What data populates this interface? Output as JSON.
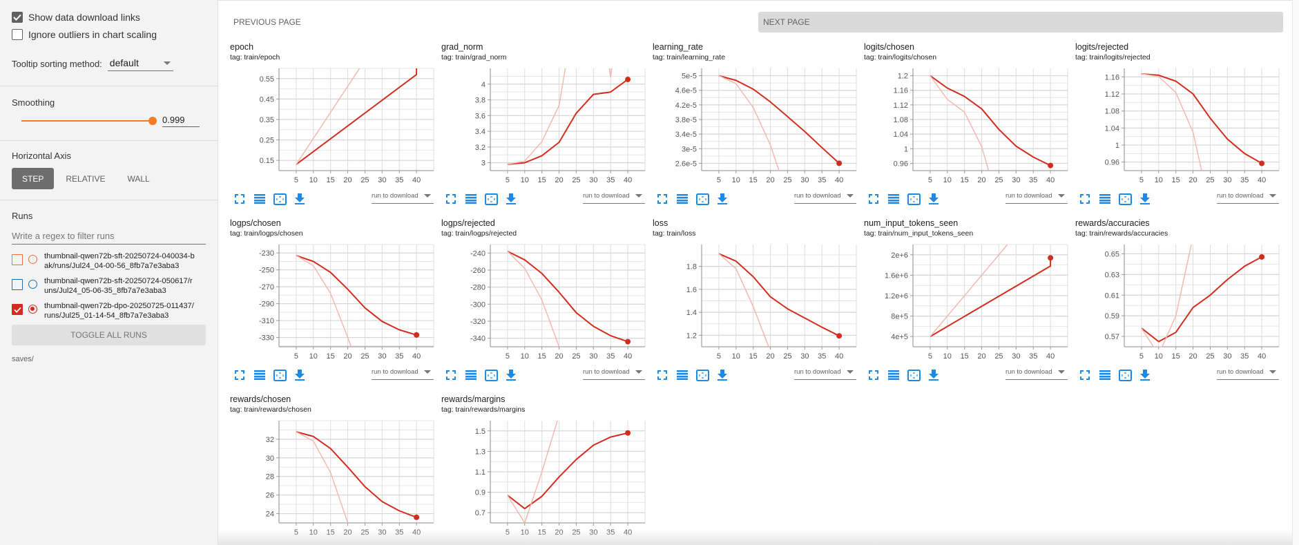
{
  "sidebar": {
    "show_download_links": {
      "label": "Show data download links",
      "checked": true
    },
    "ignore_outliers": {
      "label": "Ignore outliers in chart scaling",
      "checked": false
    },
    "tooltip_sorting": {
      "label": "Tooltip sorting method:",
      "value": "default"
    },
    "smoothing": {
      "label": "Smoothing",
      "value": "0.999"
    },
    "horizontal_axis": {
      "label": "Horizontal Axis",
      "options": [
        "STEP",
        "RELATIVE",
        "WALL"
      ],
      "selected": "STEP"
    },
    "runs": {
      "label": "Runs",
      "filter_placeholder": "Write a regex to filter runs",
      "items": [
        {
          "name": "thumbnail-qwen72b-sft-20250724-040034-bak/runs/Jul24_04-00-56_8fb7a7e3aba3",
          "color": "#f4703a",
          "checked": false
        },
        {
          "name": "thumbnail-qwen72b-sft-20250724-050617/runs/Jul24_05-06-35_8fb7a7e3aba3",
          "color": "#1f6fb4",
          "checked": false
        },
        {
          "name": "thumbnail-qwen72b-dpo-20250725-011437/runs/Jul25_01-14-54_8fb7a7e3aba3",
          "color": "#d42a1f",
          "checked": true
        }
      ],
      "toggle_all_label": "TOGGLE ALL RUNS",
      "logdir": "saves/"
    }
  },
  "main": {
    "prev_page": "PREVIOUS PAGE",
    "next_page": "NEXT PAGE",
    "download_placeholder": "run to download",
    "tag_prefix": "tag: "
  },
  "colors": {
    "line": "#d12c1e",
    "raw_line": "#f5b8b0",
    "accent_blue": "#1e88e5",
    "slider": "#f57c27"
  },
  "chart_data": [
    {
      "type": "line",
      "title": "epoch",
      "tag": "train/epoch",
      "xlabel": "Step",
      "x_ticks": [
        5,
        10,
        15,
        20,
        25,
        30,
        35,
        40
      ],
      "xlim": [
        0,
        45
      ],
      "y_ticks": [
        0.15,
        0.25,
        0.35,
        0.45,
        0.55
      ],
      "y_tick_labels": [
        "0.15",
        "0.25",
        "0.35",
        "0.45",
        "0.55"
      ],
      "ylim": [
        0.1,
        0.6
      ],
      "series": [
        {
          "name": "smoothed",
          "x": [
            5,
            40,
            40
          ],
          "y": [
            0.13,
            0.57,
            0.62
          ]
        },
        {
          "name": "raw",
          "x": [
            5,
            25
          ],
          "y": [
            0.13,
            0.64
          ]
        }
      ],
      "last_point": [
        40,
        0.62
      ]
    },
    {
      "type": "line",
      "title": "grad_norm",
      "tag": "train/grad_norm",
      "x_ticks": [
        5,
        10,
        15,
        20,
        25,
        30,
        35,
        40
      ],
      "xlim": [
        0,
        45
      ],
      "y_ticks": [
        3,
        3.2,
        3.4,
        3.6,
        3.8,
        4
      ],
      "y_tick_labels": [
        "3",
        "3.2",
        "3.4",
        "3.6",
        "3.8",
        "4"
      ],
      "ylim": [
        2.9,
        4.2
      ],
      "series": [
        {
          "name": "smoothed",
          "x": [
            5,
            10,
            15,
            20,
            25,
            30,
            35,
            40
          ],
          "y": [
            2.98,
            3.0,
            3.09,
            3.26,
            3.63,
            3.87,
            3.9,
            4.06
          ]
        },
        {
          "name": "raw",
          "x": [
            5,
            10,
            15,
            20,
            22
          ],
          "y": [
            2.98,
            3.02,
            3.27,
            3.73,
            4.25
          ]
        },
        {
          "name": "raw2",
          "x": [
            34.5,
            35,
            35.5
          ],
          "y": [
            4.25,
            4.09,
            4.25
          ]
        }
      ],
      "last_point": [
        40,
        4.06
      ]
    },
    {
      "type": "line",
      "title": "learning_rate",
      "tag": "train/learning_rate",
      "x_ticks": [
        5,
        10,
        15,
        20,
        25,
        30,
        35,
        40
      ],
      "xlim": [
        0,
        45
      ],
      "y_ticks": [
        2.6e-05,
        3e-05,
        3.4e-05,
        3.8e-05,
        4.2e-05,
        4.6e-05,
        5e-05
      ],
      "y_tick_labels": [
        "2.6e-5",
        "3e-5",
        "3.4e-5",
        "3.8e-5",
        "4.2e-5",
        "4.6e-5",
        "5e-5"
      ],
      "ylim": [
        2.4e-05,
        5.2e-05
      ],
      "series": [
        {
          "name": "smoothed",
          "x": [
            5,
            10,
            15,
            20,
            25,
            30,
            35,
            40
          ],
          "y": [
            5e-05,
            4.87e-05,
            4.63e-05,
            4.28e-05,
            3.88e-05,
            3.47e-05,
            3.03e-05,
            2.6e-05
          ]
        },
        {
          "name": "raw",
          "x": [
            5,
            10,
            15,
            20,
            22.5
          ],
          "y": [
            5e-05,
            4.78e-05,
            4.13e-05,
            3.1e-05,
            2.4e-05
          ]
        }
      ],
      "last_point": [
        40,
        2.6e-05
      ]
    },
    {
      "type": "line",
      "title": "logits/chosen",
      "tag": "train/logits/chosen",
      "x_ticks": [
        5,
        10,
        15,
        20,
        25,
        30,
        35,
        40
      ],
      "xlim": [
        0,
        45
      ],
      "y_ticks": [
        0.96,
        1,
        1.04,
        1.08,
        1.12,
        1.16,
        1.2
      ],
      "y_tick_labels": [
        "0.96",
        "1",
        "1.04",
        "1.08",
        "1.12",
        "1.16",
        "1.2"
      ],
      "ylim": [
        0.94,
        1.22
      ],
      "series": [
        {
          "name": "smoothed",
          "x": [
            5,
            10,
            15,
            20,
            25,
            30,
            35,
            40
          ],
          "y": [
            1.2,
            1.166,
            1.143,
            1.109,
            1.053,
            1.007,
            0.977,
            0.954
          ]
        },
        {
          "name": "raw",
          "x": [
            5,
            10,
            15,
            20,
            22
          ],
          "y": [
            1.2,
            1.135,
            1.1,
            1.005,
            0.94
          ]
        }
      ],
      "last_point": [
        40,
        0.954
      ]
    },
    {
      "type": "line",
      "title": "logits/rejected",
      "tag": "train/logits/rejected",
      "x_ticks": [
        5,
        10,
        15,
        20,
        25,
        30,
        35,
        40
      ],
      "xlim": [
        0,
        45
      ],
      "y_ticks": [
        0.96,
        1,
        1.04,
        1.08,
        1.12,
        1.16
      ],
      "y_tick_labels": [
        "0.96",
        "1",
        "1.04",
        "1.08",
        "1.12",
        "1.16"
      ],
      "ylim": [
        0.94,
        1.18
      ],
      "series": [
        {
          "name": "smoothed",
          "x": [
            5,
            10,
            15,
            20,
            25,
            30,
            35,
            40
          ],
          "y": [
            1.167,
            1.164,
            1.15,
            1.12,
            1.063,
            1.014,
            0.98,
            0.957
          ]
        },
        {
          "name": "raw",
          "x": [
            5,
            10,
            15,
            20,
            22.5
          ],
          "y": [
            1.167,
            1.161,
            1.123,
            1.03,
            0.94
          ]
        }
      ],
      "last_point": [
        40,
        0.957
      ]
    },
    {
      "type": "line",
      "title": "logps/chosen",
      "tag": "train/logps/chosen",
      "x_ticks": [
        5,
        10,
        15,
        20,
        25,
        30,
        35,
        40
      ],
      "xlim": [
        0,
        45
      ],
      "y_ticks": [
        -330,
        -310,
        -290,
        -270,
        -250,
        -230
      ],
      "y_tick_labels": [
        "-330",
        "-310",
        "-290",
        "-270",
        "-250",
        "-230"
      ],
      "ylim": [
        -341,
        -220
      ],
      "series": [
        {
          "name": "smoothed",
          "x": [
            5,
            10,
            15,
            20,
            25,
            30,
            35,
            40
          ],
          "y": [
            -233,
            -240,
            -253,
            -273,
            -295,
            -311,
            -321,
            -327
          ]
        },
        {
          "name": "raw",
          "x": [
            5,
            10,
            15,
            20,
            21
          ],
          "y": [
            -233,
            -245,
            -278,
            -330,
            -341
          ]
        }
      ],
      "last_point": [
        40,
        -327
      ]
    },
    {
      "type": "line",
      "title": "logps/rejected",
      "tag": "train/logps/rejected",
      "x_ticks": [
        5,
        10,
        15,
        20,
        25,
        30,
        35,
        40
      ],
      "xlim": [
        0,
        45
      ],
      "y_ticks": [
        -340,
        -320,
        -300,
        -280,
        -260,
        -240
      ],
      "y_tick_labels": [
        "-340",
        "-320",
        "-300",
        "-280",
        "-260",
        "-240"
      ],
      "ylim": [
        -350,
        -230
      ],
      "series": [
        {
          "name": "smoothed",
          "x": [
            5,
            10,
            15,
            20,
            25,
            30,
            35,
            40
          ],
          "y": [
            -238,
            -248,
            -264,
            -286,
            -310,
            -326,
            -337,
            -344
          ]
        },
        {
          "name": "raw",
          "x": [
            5,
            10,
            15,
            20
          ],
          "y": [
            -238,
            -258,
            -295,
            -350
          ]
        }
      ],
      "last_point": [
        40,
        -344
      ]
    },
    {
      "type": "line",
      "title": "loss",
      "tag": "train/loss",
      "x_ticks": [
        5,
        10,
        15,
        20,
        25,
        30,
        35,
        40
      ],
      "xlim": [
        0,
        45
      ],
      "y_ticks": [
        1.2,
        1.4,
        1.6,
        1.8
      ],
      "y_tick_labels": [
        "1.2",
        "1.4",
        "1.6",
        "1.8"
      ],
      "ylim": [
        1.1,
        1.99
      ],
      "series": [
        {
          "name": "smoothed",
          "x": [
            5,
            10,
            15,
            20,
            25,
            30,
            35,
            40
          ],
          "y": [
            1.91,
            1.845,
            1.71,
            1.535,
            1.43,
            1.35,
            1.27,
            1.195
          ]
        },
        {
          "name": "raw",
          "x": [
            5,
            10,
            15,
            19.5
          ],
          "y": [
            1.91,
            1.78,
            1.45,
            1.1
          ]
        }
      ],
      "last_point": [
        40,
        1.195
      ]
    },
    {
      "type": "line",
      "title": "num_input_tokens_seen",
      "tag": "train/num_input_tokens_seen",
      "x_ticks": [
        5,
        10,
        15,
        20,
        25,
        30,
        35,
        40
      ],
      "xlim": [
        0,
        45
      ],
      "y_ticks": [
        400000,
        800000,
        1200000,
        1600000,
        2000000
      ],
      "y_tick_labels": [
        "4e+5",
        "8e+5",
        "1.2e+6",
        "1.6e+6",
        "2e+6"
      ],
      "ylim": [
        200000,
        2200000
      ],
      "series": [
        {
          "name": "smoothed",
          "x": [
            5,
            40,
            40
          ],
          "y": [
            400000,
            1780000,
            1940000
          ]
        },
        {
          "name": "raw",
          "x": [
            5,
            27.5
          ],
          "y": [
            400000,
            2200000
          ]
        }
      ],
      "last_point": [
        40,
        1940000
      ]
    },
    {
      "type": "line",
      "title": "rewards/accuracies",
      "tag": "train/rewards/accuracies",
      "x_ticks": [
        5,
        10,
        15,
        20,
        25,
        30,
        35,
        40
      ],
      "xlim": [
        0,
        45
      ],
      "y_ticks": [
        0.57,
        0.59,
        0.61,
        0.63,
        0.65
      ],
      "y_tick_labels": [
        "0.57",
        "0.59",
        "0.61",
        "0.63",
        "0.65"
      ],
      "ylim": [
        0.56,
        0.659
      ],
      "series": [
        {
          "name": "smoothed",
          "x": [
            5,
            10,
            15,
            20,
            25,
            30,
            35,
            40
          ],
          "y": [
            0.578,
            0.565,
            0.574,
            0.598,
            0.61,
            0.625,
            0.638,
            0.647
          ]
        },
        {
          "name": "raw",
          "x": [
            5,
            8.5,
            11,
            15,
            19.5
          ],
          "y": [
            0.578,
            0.56,
            0.56,
            0.59,
            0.659
          ]
        }
      ],
      "last_point": [
        40,
        0.647
      ]
    },
    {
      "type": "line",
      "title": "rewards/chosen",
      "tag": "train/rewards/chosen",
      "x_ticks": [
        5,
        10,
        15,
        20,
        25,
        30,
        35,
        40
      ],
      "xlim": [
        0,
        45
      ],
      "y_ticks": [
        24,
        26,
        28,
        30,
        32
      ],
      "y_tick_labels": [
        "24",
        "26",
        "28",
        "30",
        "32"
      ],
      "ylim": [
        23,
        34
      ],
      "series": [
        {
          "name": "smoothed",
          "x": [
            5,
            10,
            15,
            20,
            25,
            30,
            35,
            40
          ],
          "y": [
            32.8,
            32.3,
            31.0,
            29.0,
            26.9,
            25.3,
            24.3,
            23.6
          ]
        },
        {
          "name": "raw",
          "x": [
            5,
            10,
            15,
            20
          ],
          "y": [
            32.8,
            31.8,
            28.4,
            23.0
          ]
        }
      ],
      "last_point": [
        40,
        23.6
      ]
    },
    {
      "type": "line",
      "title": "rewards/margins",
      "tag": "train/rewards/margins",
      "x_ticks": [
        5,
        10,
        15,
        20,
        25,
        30,
        35,
        40
      ],
      "xlim": [
        0,
        45
      ],
      "y_ticks": [
        0.7,
        0.9,
        1.1,
        1.3,
        1.5
      ],
      "y_tick_labels": [
        "0.7",
        "0.9",
        "1.1",
        "1.3",
        "1.5"
      ],
      "ylim": [
        0.6,
        1.6
      ],
      "series": [
        {
          "name": "smoothed",
          "x": [
            5,
            10,
            15,
            20,
            25,
            30,
            35,
            40
          ],
          "y": [
            0.87,
            0.74,
            0.86,
            1.05,
            1.22,
            1.36,
            1.44,
            1.48
          ]
        },
        {
          "name": "raw",
          "x": [
            5,
            10,
            15,
            19.5
          ],
          "y": [
            0.87,
            0.6,
            1.1,
            1.6
          ]
        }
      ],
      "last_point": [
        40,
        1.48
      ]
    }
  ]
}
